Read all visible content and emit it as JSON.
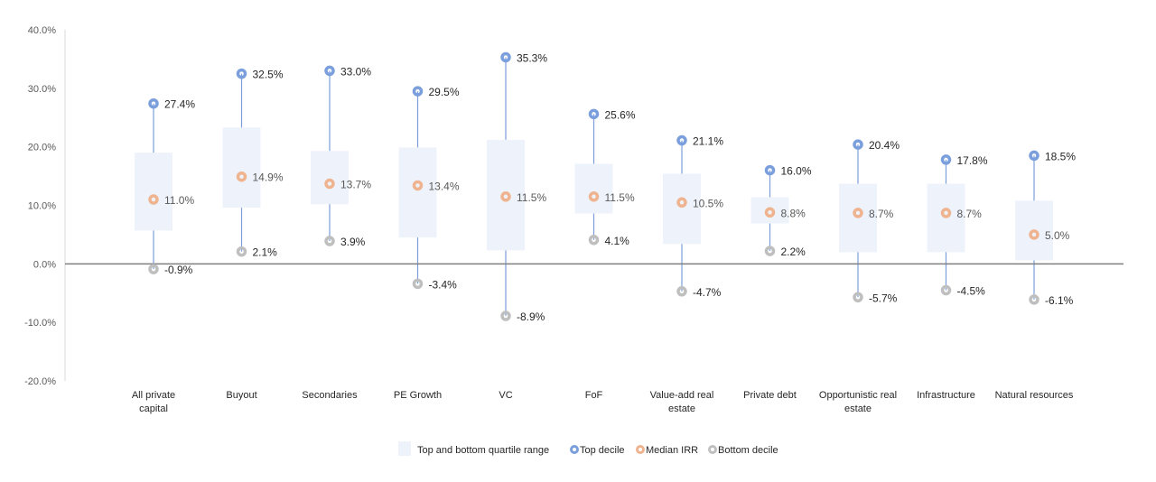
{
  "chart_data": {
    "type": "box",
    "ylim": [
      -20,
      40
    ],
    "y_ticks": [
      "-20.0%",
      "-10.0%",
      "0.0%",
      "10.0%",
      "20.0%",
      "30.0%",
      "40.0%"
    ],
    "grid": false,
    "legend_position": "bottom",
    "categories": [
      "All private capital",
      "Buyout",
      "Secondaries",
      "PE Growth",
      "VC",
      "FoF",
      "Value-add real estate",
      "Private debt",
      "Opportunistic real estate",
      "Infrastructure",
      "Natural resources"
    ],
    "series": [
      {
        "name": "Top and bottom quartile range",
        "color": "#eef3fb",
        "upper": [
          19.0,
          23.3,
          19.3,
          19.9,
          21.2,
          17.1,
          15.4,
          11.4,
          13.7,
          13.7,
          10.8
        ],
        "lower": [
          5.7,
          9.6,
          10.2,
          4.5,
          2.3,
          8.6,
          3.4,
          6.9,
          2.0,
          2.0,
          0.6
        ]
      },
      {
        "name": "Top decile",
        "color": "#7a9fdc",
        "values": [
          27.4,
          32.5,
          33.0,
          29.5,
          35.3,
          25.6,
          21.1,
          16.0,
          20.4,
          17.8,
          18.5
        ],
        "labels": [
          "27.4%",
          "32.5%",
          "33.0%",
          "29.5%",
          "35.3%",
          "25.6%",
          "21.1%",
          "16.0%",
          "20.4%",
          "17.8%",
          "18.5%"
        ]
      },
      {
        "name": "Median IRR",
        "color": "#efb38f",
        "values": [
          11.0,
          14.9,
          13.7,
          13.4,
          11.5,
          11.5,
          10.5,
          8.8,
          8.7,
          8.7,
          5.0
        ],
        "labels": [
          "11.0%",
          "14.9%",
          "13.7%",
          "13.4%",
          "11.5%",
          "11.5%",
          "10.5%",
          "8.8%",
          "8.7%",
          "8.7%",
          "5.0%"
        ]
      },
      {
        "name": "Bottom decile",
        "color": "#bfbfbf",
        "values": [
          -0.9,
          2.1,
          3.9,
          -3.4,
          -8.9,
          4.1,
          -4.7,
          2.2,
          -5.7,
          -4.5,
          -6.1
        ],
        "labels": [
          "-0.9%",
          "2.1%",
          "3.9%",
          "-3.4%",
          "-8.9%",
          "4.1%",
          "-4.7%",
          "2.2%",
          "-5.7%",
          "-4.5%",
          "-6.1%"
        ]
      }
    ]
  }
}
